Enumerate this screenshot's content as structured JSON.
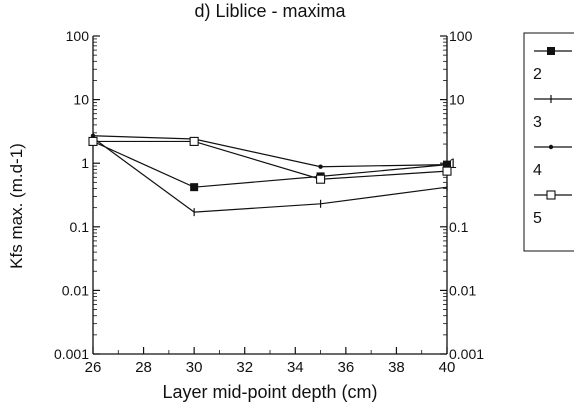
{
  "chart_data": {
    "type": "line",
    "title": "d) Liblice - maxima",
    "xlabel": "Layer mid-point depth (cm)",
    "ylabel": "Kfs max. (m.d-1)",
    "x_ticks": [
      "26",
      "28",
      "30",
      "32",
      "34",
      "36",
      "38",
      "40"
    ],
    "y_ticks_left": [
      "100",
      "10",
      "1",
      "0.1",
      "0.01",
      "0.001"
    ],
    "y_ticks_right": [
      "100",
      "10",
      "1",
      "0.1",
      "0.01",
      "0.001"
    ],
    "x": [
      26,
      30,
      35,
      40
    ],
    "xlim": [
      26,
      40
    ],
    "ylim": [
      0.001,
      100
    ],
    "y_scale": "log",
    "grid": false,
    "legend_position": "right",
    "series": [
      {
        "name": "2",
        "values": [
          2.2,
          0.42,
          0.62,
          0.95
        ],
        "marker": "filled-square"
      },
      {
        "name": "3",
        "values": [
          2.5,
          0.17,
          0.23,
          0.42
        ],
        "marker": "plus"
      },
      {
        "name": "4",
        "values": [
          2.7,
          2.4,
          0.88,
          0.95
        ],
        "marker": "dot"
      },
      {
        "name": "5",
        "values": [
          2.2,
          2.2,
          0.56,
          0.75
        ],
        "marker": "open-square"
      }
    ]
  }
}
